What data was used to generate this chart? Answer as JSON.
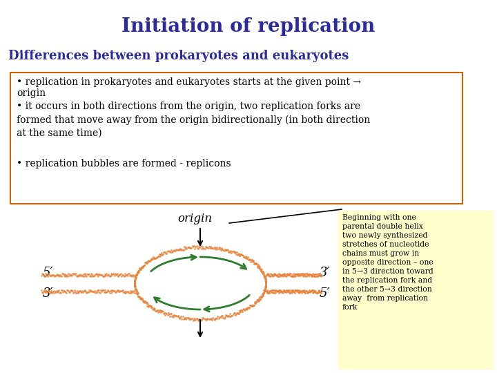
{
  "title": "Initiation of replication",
  "title_color": "#2B2B9B",
  "subtitle": "Differences between prokaryotes and eukaryotes",
  "subtitle_color": "#2B2B9B",
  "bullet1_line1": "• replication in prokaryotes and eukaryotes starts at the given point →",
  "bullet1_line2": "origin",
  "bullet2": "• it occurs in both directions from the origin, two replication forks are\nformed that move away from the origin bidirectionally (in both direction\nat the same time)",
  "bullet3": "• replication bubbles are formed - replicons",
  "box_edge_color": "#cc6600",
  "bg_color": "#ffffff",
  "yellow_box_color": "#ffffcc",
  "yellow_box_text": "Beginning with one\nparental double helix\ntwo newly synthesized\nstretches of nucleotide\nchains must grow in\nopposite direction – one\nin 5→3 direction toward\nthe replication fork and\nthe other 5→3 direction\naway  from replication\nfork",
  "orange_color": "#E8823A",
  "green_color": "#2d7d2d",
  "origin_label": "origin",
  "label_5prime_left": "5′",
  "label_3prime_left": "3′",
  "label_3prime_right": "3′",
  "label_5prime_right": "5′"
}
